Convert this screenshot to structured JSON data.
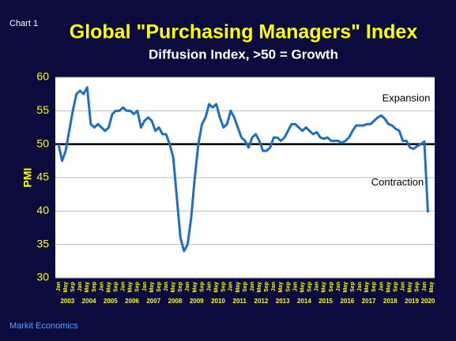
{
  "page": {
    "chart_label": "Chart 1",
    "source": "Markit Economics"
  },
  "chart_data": {
    "type": "line",
    "title": "Global \"Purchasing Managers\" Index",
    "subtitle": "Diffusion Index, >50 = Growth",
    "y_label": "PMI",
    "color": "#1f6fc0",
    "ylim": [
      30,
      60
    ],
    "yticks": [
      30,
      35,
      40,
      45,
      50,
      55,
      60
    ],
    "grid": true,
    "reference_line": 50,
    "annotations": [
      "Expansion",
      "Contraction"
    ],
    "years": [
      "2003",
      "2004",
      "2005",
      "2006",
      "2007",
      "2008",
      "2009",
      "2010",
      "2011",
      "2012",
      "2013",
      "2014",
      "2015",
      "2016",
      "2017",
      "2018",
      "2019",
      "2020"
    ],
    "categories": [
      "Jan",
      null,
      "May",
      null,
      "Sep",
      null,
      "Jan",
      null,
      "May",
      null,
      "Sep",
      null,
      "Jan",
      null,
      "May",
      null,
      "Sep",
      null,
      "Jan",
      null,
      "May",
      null,
      "Sep",
      null,
      "Jan",
      null,
      "May",
      null,
      "Sep",
      null,
      "Jan",
      null,
      "May",
      null,
      "Sep",
      null,
      "Jan",
      null,
      "May",
      null,
      "Sep",
      null,
      "Jan",
      null,
      "May",
      null,
      "Sep",
      null,
      "Jan",
      null,
      "May",
      null,
      "Sep",
      null,
      "Jan",
      null,
      "May",
      null,
      "Sep",
      null,
      "Jan",
      null,
      "May",
      null,
      "Sep",
      null,
      "Jan",
      null,
      "May",
      null,
      "Sep",
      null,
      "Jan",
      null,
      "May",
      null,
      "Sep",
      null,
      "Jan",
      null,
      "May",
      null,
      "Sep",
      null,
      "Jan",
      null,
      "May",
      null,
      "Sep",
      null,
      "Jan",
      null,
      "May",
      null,
      "Sep",
      null,
      "Jan",
      null,
      "May",
      null,
      "Sep",
      null,
      "Jan",
      null,
      "May"
    ],
    "values": [
      50,
      47.5,
      49,
      52,
      55,
      57.5,
      58,
      57.5,
      58.5,
      53,
      52.5,
      53,
      52.5,
      52,
      52.5,
      54.5,
      55,
      55,
      55.5,
      55,
      55,
      54.5,
      55,
      52.5,
      53.5,
      54,
      53.5,
      52,
      52.5,
      51.5,
      51.5,
      50,
      48,
      42,
      36,
      34,
      35,
      39,
      45,
      50,
      53,
      54,
      56,
      55.5,
      56,
      54,
      52.5,
      53,
      55,
      54,
      52.5,
      51,
      50.5,
      49.5,
      51,
      51.5,
      50.5,
      49,
      49,
      49.5,
      51,
      51,
      50.5,
      51,
      52,
      53,
      53,
      52.5,
      52,
      52.5,
      52,
      51.5,
      51.8,
      51,
      50.8,
      51,
      50.5,
      50.5,
      50.5,
      50.2,
      50.5,
      51,
      52,
      52.8,
      52.8,
      52.8,
      53,
      53,
      53.5,
      54,
      54.3,
      53.8,
      53,
      52.8,
      52.3,
      52,
      50.5,
      50.5,
      49.5,
      49.3,
      49.7,
      50,
      50.4,
      39.8,
      null
    ]
  }
}
